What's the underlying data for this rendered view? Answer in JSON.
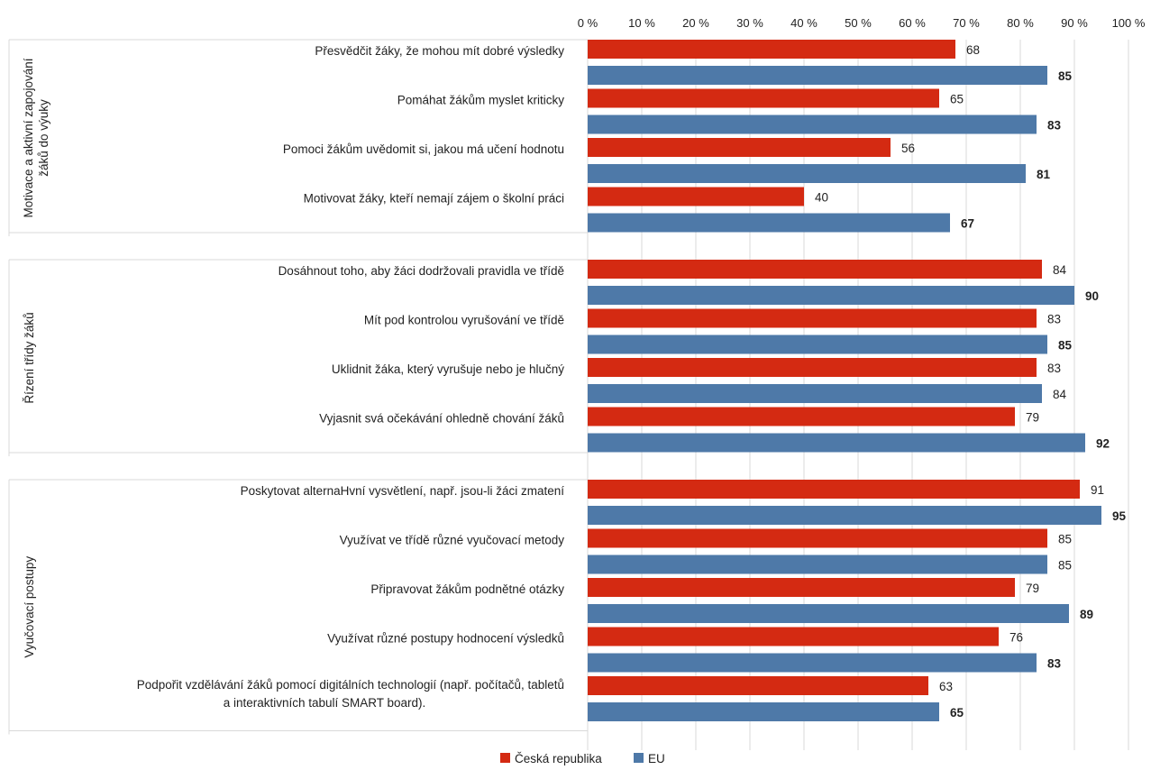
{
  "chart_data": {
    "type": "bar",
    "orientation": "horizontal",
    "x_ticks": [
      "0 %",
      "10 %",
      "20 %",
      "30 %",
      "40 %",
      "50 %",
      "60 %",
      "70 %",
      "80 %",
      "90 %",
      "100 %"
    ],
    "xlim": [
      0,
      100
    ],
    "grid": true,
    "legend_position": "bottom",
    "series": [
      {
        "name": "Česká republika",
        "color": "#d42a12"
      },
      {
        "name": "EU",
        "color": "#4e79a8"
      }
    ],
    "groups": [
      {
        "label": "Motivace a aktivní zapojování žáků do výuky",
        "items": [
          {
            "label": [
              "Přesvědčit žáky, že mohou mít dobré výsledky"
            ],
            "cz": 68,
            "eu": 85,
            "eu_bold": true
          },
          {
            "label": [
              "Pomáhat žákům myslet kriticky"
            ],
            "cz": 65,
            "eu": 83,
            "eu_bold": true
          },
          {
            "label": [
              "Pomoci žákům uvědomit si, jakou má učení hodnotu"
            ],
            "cz": 56,
            "eu": 81,
            "eu_bold": true
          },
          {
            "label": [
              "Motivovat žáky, kteří nemají zájem o školní práci"
            ],
            "cz": 40,
            "eu": 67,
            "eu_bold": true
          }
        ]
      },
      {
        "label": "Řízení třídy žáků",
        "items": [
          {
            "label": [
              "Dosáhnout toho, aby žáci dodržovali pravidla ve třídě"
            ],
            "cz": 84,
            "eu": 90,
            "eu_bold": true
          },
          {
            "label": [
              "Mít pod kontrolou vyrušování ve třídě"
            ],
            "cz": 83,
            "eu": 85,
            "eu_bold": true
          },
          {
            "label": [
              "Uklidnit žáka, který vyrušuje nebo je hlučný"
            ],
            "cz": 83,
            "eu": 84,
            "eu_bold": false
          },
          {
            "label": [
              "Vyjasnit svá očekávání ohledně chování žáků"
            ],
            "cz": 79,
            "eu": 92,
            "eu_bold": true
          }
        ]
      },
      {
        "label": "Vyučovací postupy",
        "items": [
          {
            "label": [
              "Poskytovat alternaHvní vysvětlení, např. jsou-li žáci zmatení"
            ],
            "cz": 91,
            "eu": 95,
            "eu_bold": true
          },
          {
            "label": [
              "Využívat ve třídě různé vyučovací metody"
            ],
            "cz": 85,
            "eu": 85,
            "eu_bold": false
          },
          {
            "label": [
              "Připravovat žákům podnětné otázky"
            ],
            "cz": 79,
            "eu": 89,
            "eu_bold": true
          },
          {
            "label": [
              "Využívat různé postupy hodnocení výsledků"
            ],
            "cz": 76,
            "eu": 83,
            "eu_bold": true
          },
          {
            "label": [
              "Podpořit vzdělávání žáků pomocí digitálních technologií (např. počítačů, tabletů",
              "a interaktivních tabulí SMART board)."
            ],
            "cz": 63,
            "eu": 65,
            "eu_bold": true
          }
        ]
      }
    ]
  }
}
